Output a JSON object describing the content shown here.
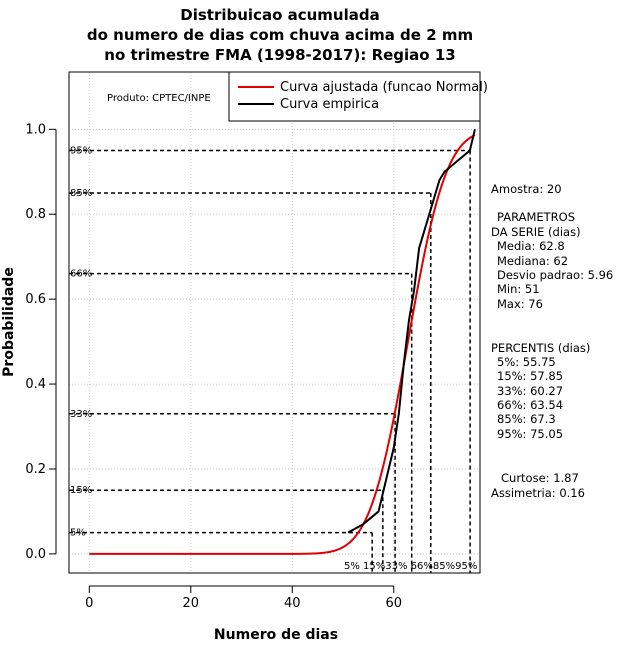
{
  "chart_data": {
    "type": "line",
    "title_lines": [
      "Distribuicao acumulada",
      "do numero de dias com chuva acima de 2 mm",
      "no trimestre FMA (1998-2017): Regiao 13"
    ],
    "xlabel": "Numero de dias",
    "ylabel": "Probabilidade",
    "xlim": [
      -4,
      77
    ],
    "ylim": [
      -0.045,
      1.135
    ],
    "x_ticks": [
      0,
      20,
      40,
      60
    ],
    "y_ticks": [
      "0.0",
      "0.2",
      "0.4",
      "0.6",
      "0.8",
      "1.0"
    ],
    "grid": true,
    "product_label": "Produto: CPTEC/INPE",
    "legend": {
      "placement": "top-right",
      "entries": [
        {
          "label": "Curva ajustada (funcao Normal)",
          "color": "#e00000"
        },
        {
          "label": "Curva empirica",
          "color": "#000000"
        }
      ]
    },
    "fitted_normal": {
      "mean": 62.8,
      "sd": 5.96,
      "x_from": 0,
      "x_to": 76
    },
    "empirical": {
      "x": [
        51,
        54,
        56,
        57,
        58,
        59,
        60,
        61,
        62,
        63,
        64,
        65,
        66,
        67,
        68,
        69,
        70,
        72,
        74,
        75,
        76
      ],
      "y": [
        0.05,
        0.07,
        0.09,
        0.1,
        0.15,
        0.2,
        0.25,
        0.33,
        0.45,
        0.55,
        0.62,
        0.72,
        0.76,
        0.8,
        0.84,
        0.88,
        0.9,
        0.92,
        0.94,
        0.95,
        1.0
      ]
    },
    "percentile_lines": [
      {
        "label": "5%",
        "prob": 0.05,
        "value": 55.75
      },
      {
        "label": "15%",
        "prob": 0.15,
        "value": 57.85
      },
      {
        "label": "33%",
        "prob": 0.33,
        "value": 60.27
      },
      {
        "label": "66%",
        "prob": 0.66,
        "value": 63.54
      },
      {
        "label": "85%",
        "prob": 0.85,
        "value": 67.3
      },
      {
        "label": "95%",
        "prob": 0.95,
        "value": 75.05
      }
    ],
    "bottom_percent_labels": "5% 15%33% 66%85%95%",
    "side_panel": [
      "Amostra: 20",
      "PARAMETROS",
      "DA SERIE (dias)",
      "Media: 62.8",
      "Mediana: 62",
      "Desvio padrao: 5.96",
      "Min: 51",
      "Max: 76",
      "PERCENTIS (dias)",
      "5%: 55.75",
      "15%: 57.85",
      "33%: 60.27",
      "66%: 63.54",
      "85%: 67.3",
      "95%: 75.05",
      "Curtose: 1.87",
      "Assimetria: 0.16"
    ]
  }
}
